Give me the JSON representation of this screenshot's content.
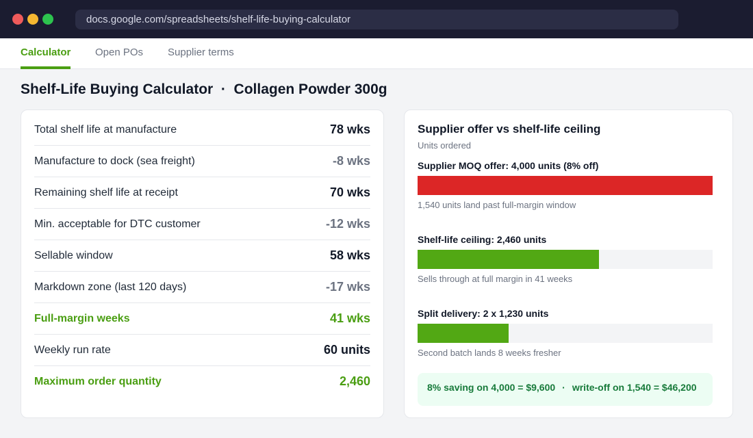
{
  "browser": {
    "url": "docs.google.com/spreadsheets/shelf-life-buying-calculator"
  },
  "tabs": [
    {
      "label": "Calculator",
      "active": true
    },
    {
      "label": "Open POs",
      "active": false
    },
    {
      "label": "Supplier terms",
      "active": false
    }
  ],
  "page": {
    "title": "Shelf-Life Buying Calculator",
    "separator": "·",
    "product": "Collagen Powder 300g"
  },
  "calculator": {
    "rows": [
      {
        "label": "Total shelf life at manufacture",
        "value": "78 wks",
        "style": "normal"
      },
      {
        "label": "Manufacture to dock (sea freight)",
        "value": "-8 wks",
        "style": "muted"
      },
      {
        "label": "Remaining shelf life at receipt",
        "value": "70 wks",
        "style": "normal"
      },
      {
        "label": "Min. acceptable for DTC customer",
        "value": "-12 wks",
        "style": "muted"
      },
      {
        "label": "Sellable window",
        "value": "58 wks",
        "style": "normal"
      },
      {
        "label": "Markdown zone (last 120 days)",
        "value": "-17 wks",
        "style": "muted"
      },
      {
        "label": "Full-margin weeks",
        "value": "41 wks",
        "style": "accent"
      },
      {
        "label": "Weekly run rate",
        "value": "60 units",
        "style": "normal"
      },
      {
        "label": "Maximum order quantity",
        "value": "2,460",
        "style": "accent"
      }
    ]
  },
  "chart": {
    "title": "Supplier offer vs shelf-life ceiling",
    "subtitle": "Units ordered",
    "max_units": 4000,
    "bars": [
      {
        "label": "Supplier MOQ offer: 4,000 units (8% off)",
        "units": 4000,
        "color": "#dc2626",
        "note": "1,540 units land past full-margin window"
      },
      {
        "label": "Shelf-life ceiling: 2,460 units",
        "units": 2460,
        "color": "#52a814",
        "note": "Sells through at full margin in 41 weeks"
      },
      {
        "label": "Split delivery: 2 x 1,230 units",
        "units": 1230,
        "color": "#52a814",
        "note": "Second batch lands 8 weeks fresher"
      }
    ]
  },
  "summary": {
    "saving": "8% saving on 4,000 = $9,600",
    "separator": "·",
    "writeoff": "write-off on 1,540 = $46,200"
  }
}
